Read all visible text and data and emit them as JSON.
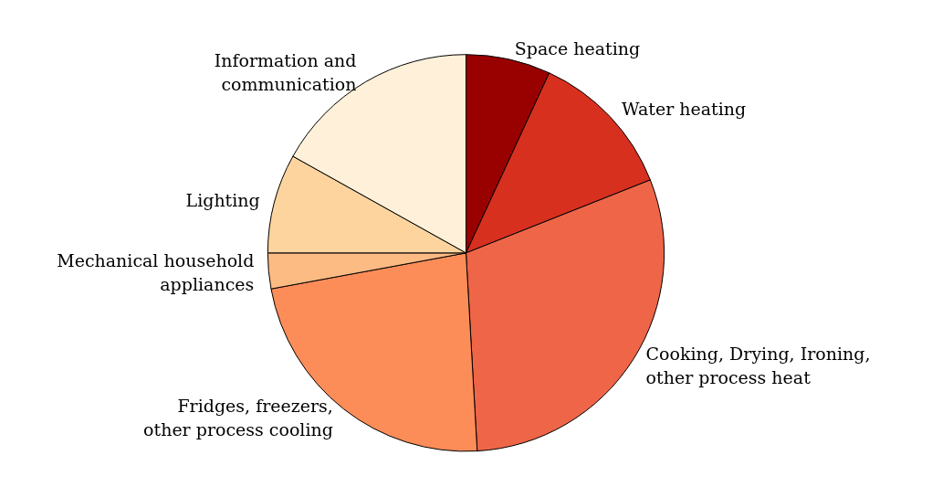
{
  "chart_data": {
    "type": "pie",
    "categories": [
      "Space heating",
      "Water heating",
      "Cooking, Drying, Ironing,\nother process heat",
      "Fridges, freezers,\nother process cooling",
      "Mechanical household\nappliances",
      "Lighting",
      "Information and\ncommunication"
    ],
    "values": [
      6.9,
      12.1,
      30.1,
      23.0,
      2.9,
      8.1,
      16.9
    ],
    "colors": [
      "#990000",
      "#d7301f",
      "#ef6548",
      "#fc8d59",
      "#fdbb84",
      "#fdd49e",
      "#fef0d9"
    ],
    "legend": false
  }
}
